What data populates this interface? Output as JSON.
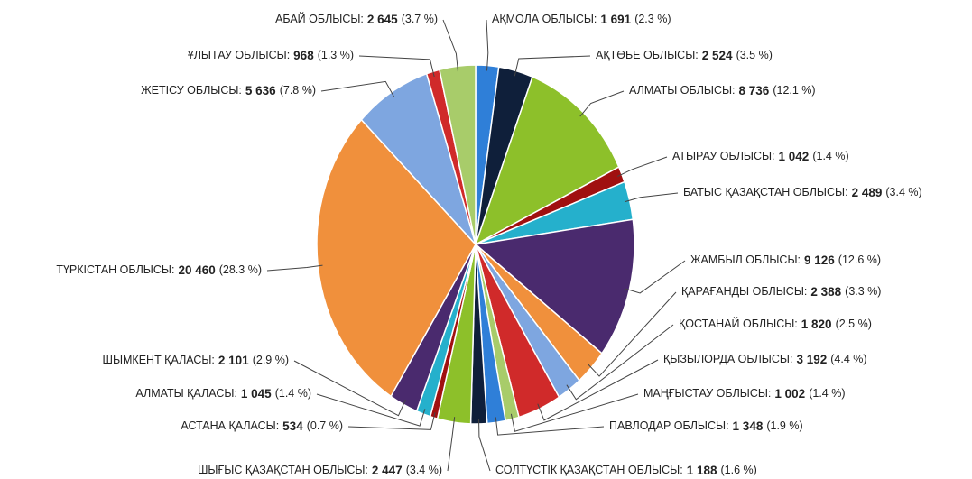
{
  "chart_data": {
    "type": "pie",
    "categories": [
      "АҚМОЛА ОБЛЫСЫ:",
      "АҚТӨБЕ ОБЛЫСЫ:",
      "АЛМАТЫ ОБЛЫСЫ:",
      "АТЫРАУ ОБЛЫСЫ:",
      "БАТЫС ҚАЗАҚСТАН ОБЛЫСЫ:",
      "ЖАМБЫЛ ОБЛЫСЫ:",
      "ҚАРАҒАНДЫ ОБЛЫСЫ:",
      "ҚОСТАНАЙ ОБЛЫСЫ:",
      "ҚЫЗЫЛОРДА ОБЛЫСЫ:",
      "МАҢҒЫСТАУ ОБЛЫСЫ:",
      "ПАВЛОДАР ОБЛЫСЫ:",
      "СОЛТҮСТІК ҚАЗАҚСТАН ОБЛЫСЫ:",
      "ШЫҒЫС ҚАЗАҚСТАН ОБЛЫСЫ:",
      "АСТАНА ҚАЛАСЫ:",
      "АЛМАТЫ ҚАЛАСЫ:",
      "ШЫМКЕНТ ҚАЛАСЫ:",
      "ТҮРКІСТАН ОБЛЫСЫ:",
      "ЖЕТІСУ ОБЛЫСЫ:",
      "ҰЛЫТАУ ОБЛЫСЫ:",
      "АБАЙ ОБЛЫСЫ:"
    ],
    "values": [
      1691,
      2524,
      8736,
      1042,
      2489,
      9126,
      2388,
      1820,
      3192,
      1002,
      1348,
      1188,
      2447,
      534,
      1045,
      2101,
      20460,
      5636,
      968,
      2645
    ],
    "value_labels": [
      "1 691",
      "2 524",
      "8 736",
      "1 042",
      "2 489",
      "9 126",
      "2 388",
      "1 820",
      "3 192",
      "1 002",
      "1 348",
      "1 188",
      "2 447",
      "534",
      "1 045",
      "2 101",
      "20 460",
      "5 636",
      "968",
      "2 645"
    ],
    "percents": [
      2.3,
      3.5,
      12.1,
      1.4,
      3.4,
      12.6,
      3.3,
      2.5,
      4.4,
      1.4,
      1.9,
      1.6,
      3.4,
      0.7,
      1.4,
      2.9,
      28.3,
      7.8,
      1.3,
      3.7
    ],
    "percent_labels": [
      "(2.3 %)",
      "(3.5 %)",
      "(12.1 %)",
      "(1.4 %)",
      "(3.4 %)",
      "(12.6 %)",
      "(3.3 %)",
      "(2.5 %)",
      "(4.4 %)",
      "(1.4 %)",
      "(1.9 %)",
      "(1.6 %)",
      "(3.4 %)",
      "(0.7 %)",
      "(1.4 %)",
      "(2.9 %)",
      "(28.3 %)",
      "(7.8 %)",
      "(1.3 %)",
      "(3.7 %)"
    ],
    "colors": [
      "#2f7fd8",
      "#0f1f3a",
      "#8dc02a",
      "#a01010",
      "#25b0cc",
      "#4a2a6e",
      "#f0903c",
      "#7ea6e0",
      "#d02a2a",
      "#a8cc6a",
      "#2f7fd8",
      "#0f1f3a",
      "#8dc02a",
      "#a01010",
      "#25b0cc",
      "#4a2a6e",
      "#f0903c",
      "#7ea6e0",
      "#d02a2a",
      "#a8cc6a"
    ]
  }
}
